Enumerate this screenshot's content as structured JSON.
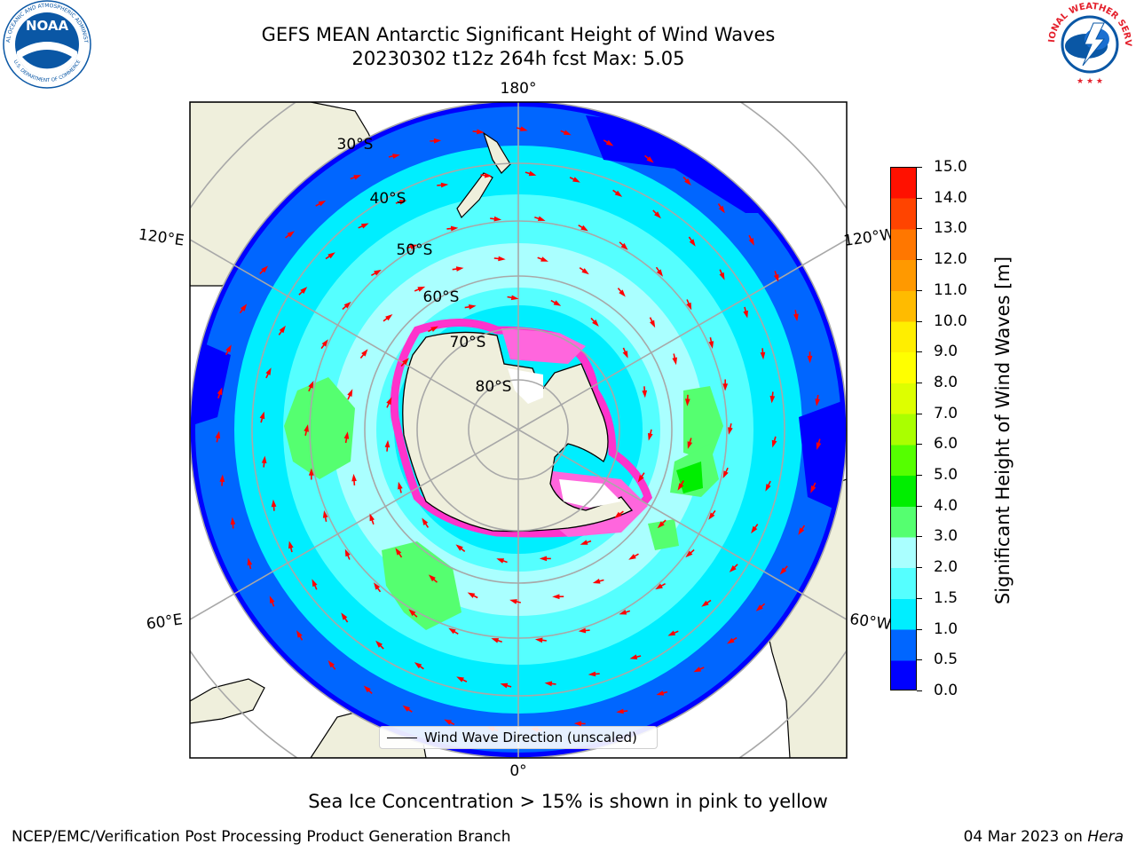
{
  "header": {
    "title_line1": "GEFS MEAN Antarctic Significant Height of Wind Waves",
    "title_line2": "20230302 t12z 264h fcst   Max: 5.05"
  },
  "logos": {
    "noaa_text": "NOAA",
    "noaa_ring_text": "NATIONAL OCEANIC AND ATMOSPHERIC ADMINISTRATION",
    "noaa_ring_bottom": "U.S. DEPARTMENT OF COMMERCE",
    "nws_ring_text": "NATIONAL WEATHER SERVICE",
    "noaa_blue": "#0a57a5",
    "nws_red": "#e4202c"
  },
  "map": {
    "projection": "south-polar-stereographic",
    "longitude_labels": [
      "180°",
      "120°E",
      "120°W",
      "60°E",
      "60°W",
      "0°"
    ],
    "latitude_labels": [
      "30°S",
      "40°S",
      "50°S",
      "60°S",
      "70°S",
      "80°S"
    ],
    "land_color": "#efefdc",
    "arrow_color": "#ff0000",
    "legend_label": "Wind Wave Direction (unscaled)"
  },
  "colorbar": {
    "label": "Significant Height of Wind Waves [m]",
    "ticks": [
      "15.0",
      "14.0",
      "13.0",
      "12.0",
      "11.0",
      "10.0",
      "9.0",
      "8.0",
      "7.0",
      "6.0",
      "5.0",
      "4.0",
      "3.0",
      "2.0",
      "1.5",
      "1.0",
      "0.5",
      "0.0"
    ],
    "colors": [
      "#0000ff",
      "#0066ff",
      "#00eeff",
      "#55ffff",
      "#aaffff",
      "#55ff70",
      "#00ee00",
      "#55ff00",
      "#aaff00",
      "#ddff00",
      "#ffff00",
      "#ffee00",
      "#ffbb00",
      "#ff9900",
      "#ff7700",
      "#ff4400",
      "#ff1100"
    ]
  },
  "footer": {
    "note": "Sea Ice Concentration > 15% is shown in pink to yellow",
    "credit_left": "NCEP/EMC/Verification Post Processing Product Generation Branch",
    "credit_right_date": "04 Mar 2023 on ",
    "credit_right_host": "Hera"
  }
}
